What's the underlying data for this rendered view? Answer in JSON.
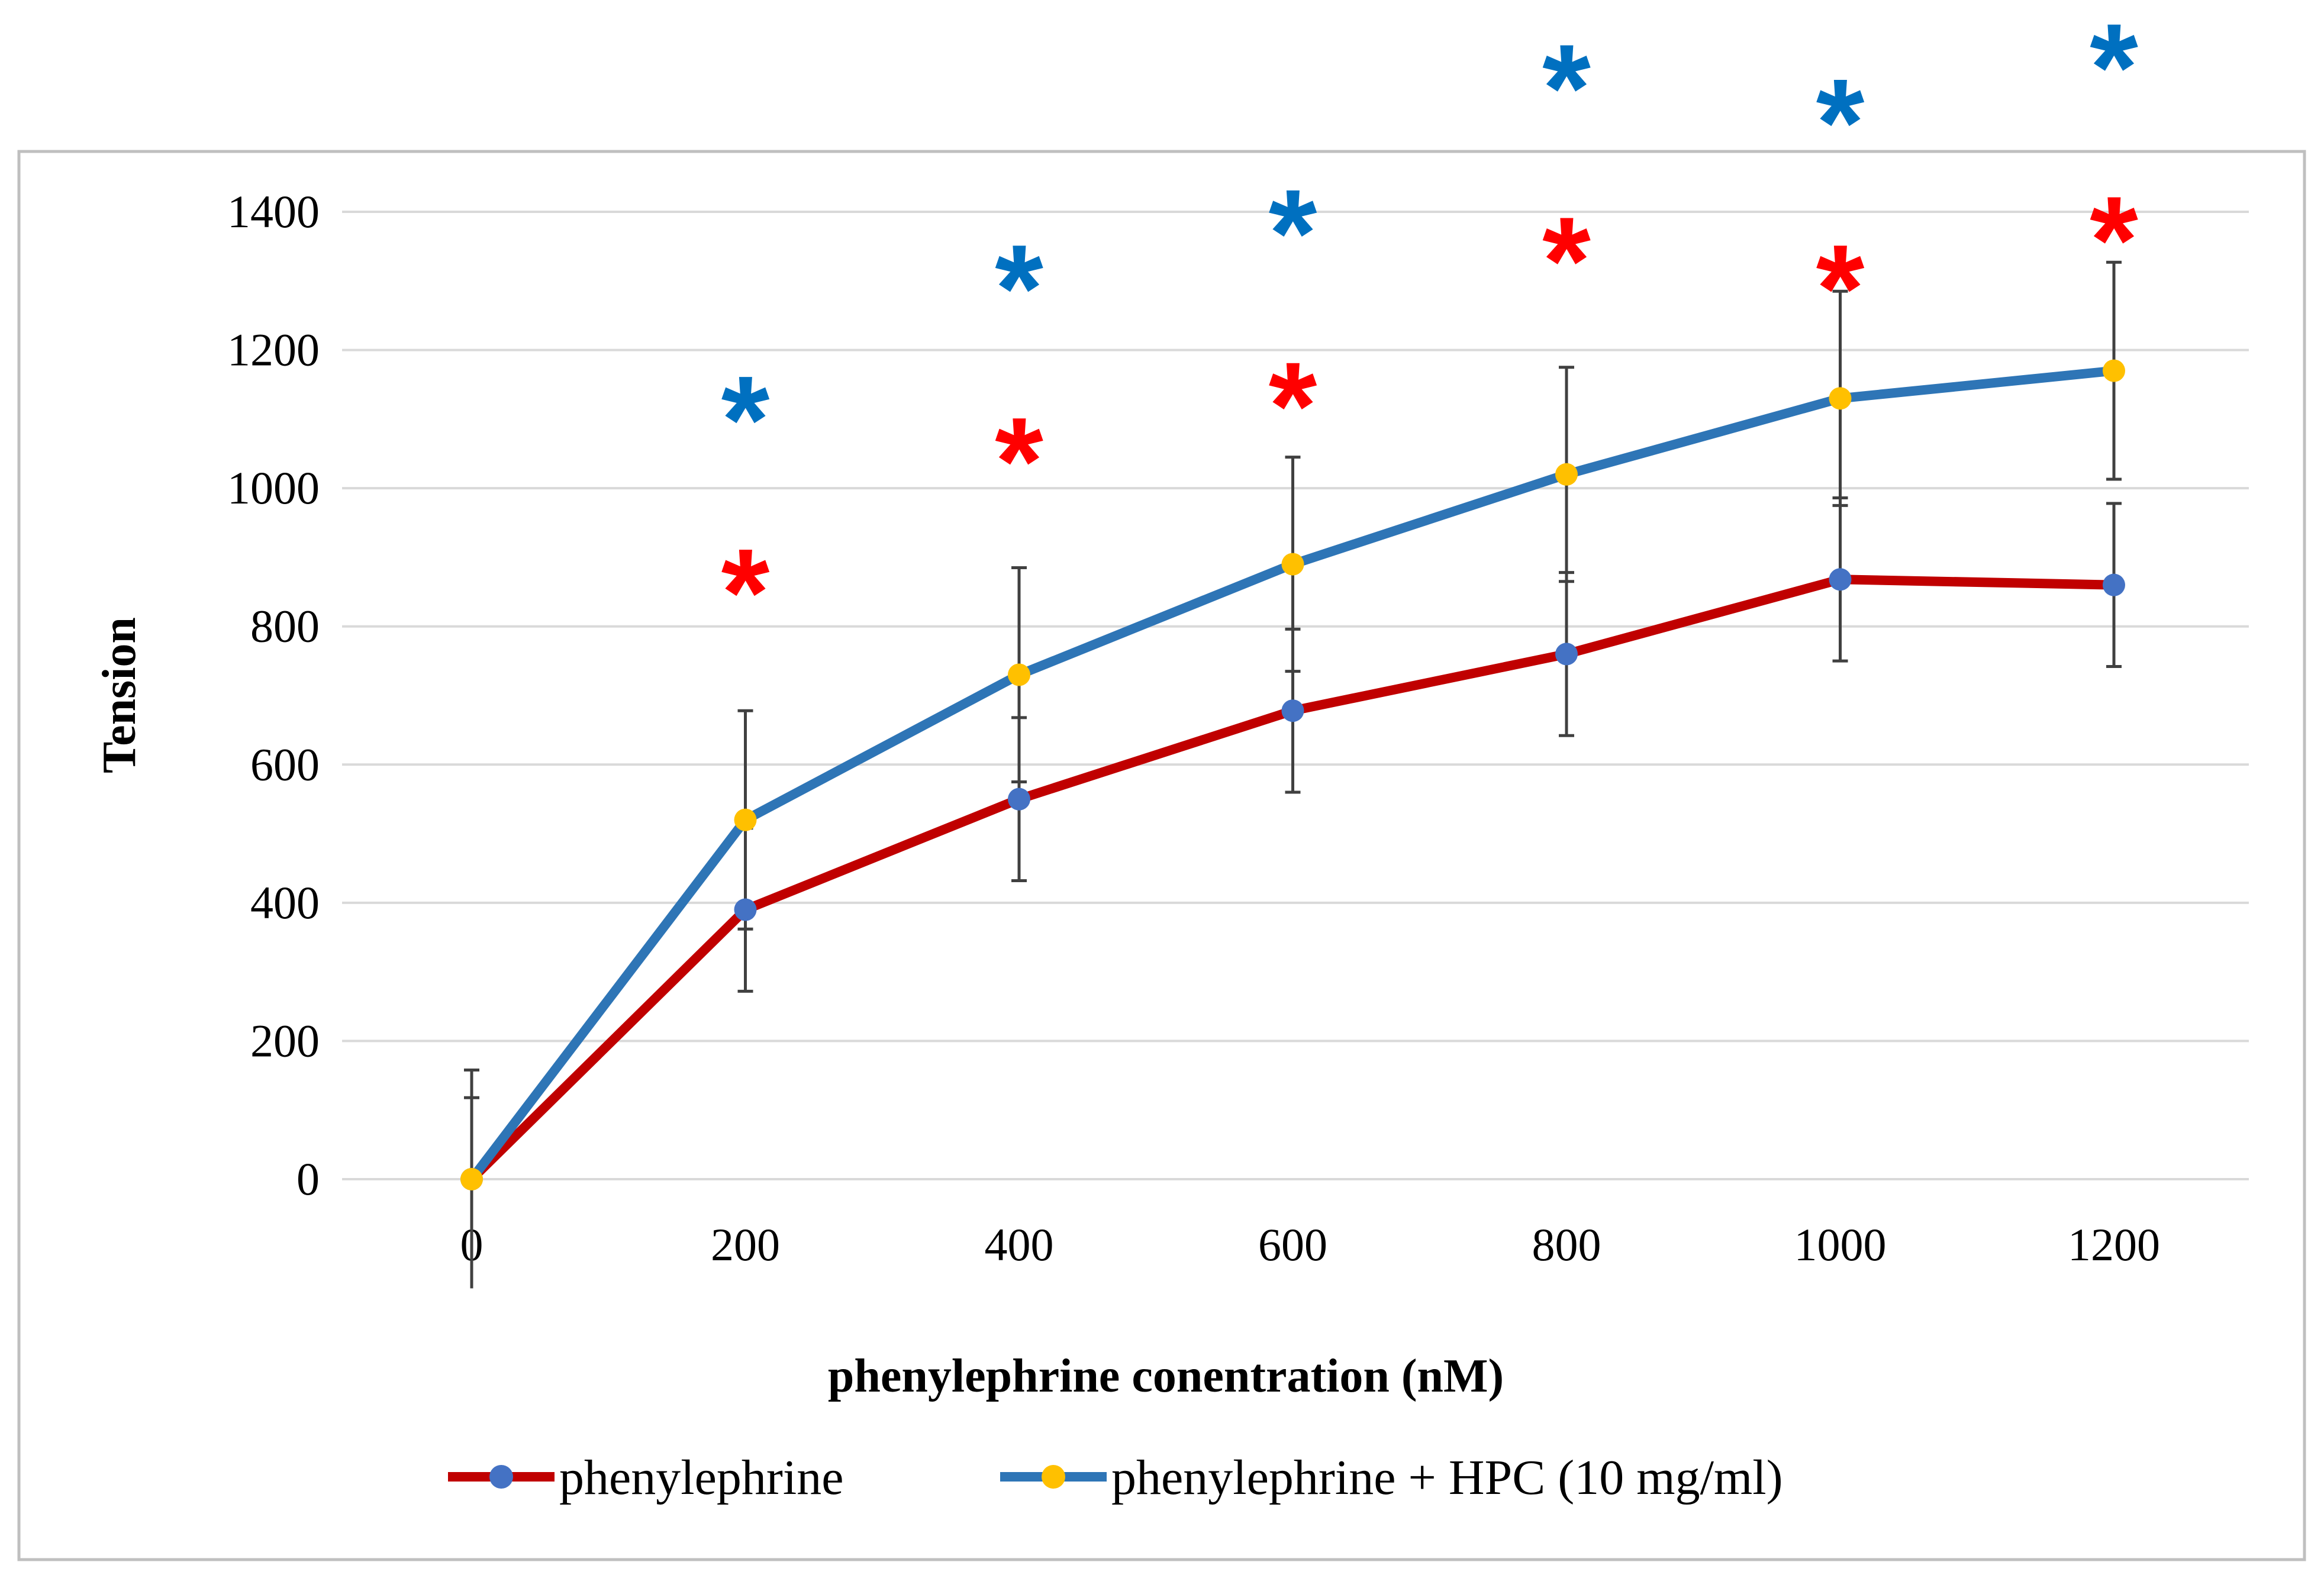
{
  "chart_data": {
    "type": "line",
    "title": "",
    "xlabel": "phenylephrine conentration (nM)",
    "ylabel": "Tension",
    "x": [
      0,
      200,
      400,
      600,
      800,
      1000,
      1200
    ],
    "x_tick_labels": [
      "0",
      "200",
      "400",
      "600",
      "800",
      "1000",
      "1200"
    ],
    "ylim": [
      0,
      1400
    ],
    "y_ticks": [
      0,
      200,
      400,
      600,
      800,
      1000,
      1200,
      1400
    ],
    "grid": "horizontal",
    "legend_position": "bottom",
    "significance_marker": "*",
    "series": [
      {
        "name": "phenylephrine",
        "line_color": "#c00000",
        "marker_color": "#4472c4",
        "values": [
          0,
          390,
          550,
          678,
          760,
          868,
          860
        ],
        "error": [
          118,
          118,
          118,
          118,
          118,
          118,
          118
        ],
        "significance_y": [
          null,
          890,
          1080,
          1160,
          1370,
          1330,
          1400
        ],
        "significance_color": "#ff0000"
      },
      {
        "name": "phenylephrine + HPC (10 mg/ml)",
        "line_color": "#2e75b6",
        "marker_color": "#ffc000",
        "values": [
          0,
          520,
          730,
          890,
          1020,
          1130,
          1170
        ],
        "error": [
          158,
          158,
          155,
          155,
          155,
          155,
          157
        ],
        "significance_y": [
          null,
          1140,
          1330,
          1410,
          1620,
          1570,
          1650
        ],
        "significance_color": "#0070c0"
      }
    ]
  }
}
